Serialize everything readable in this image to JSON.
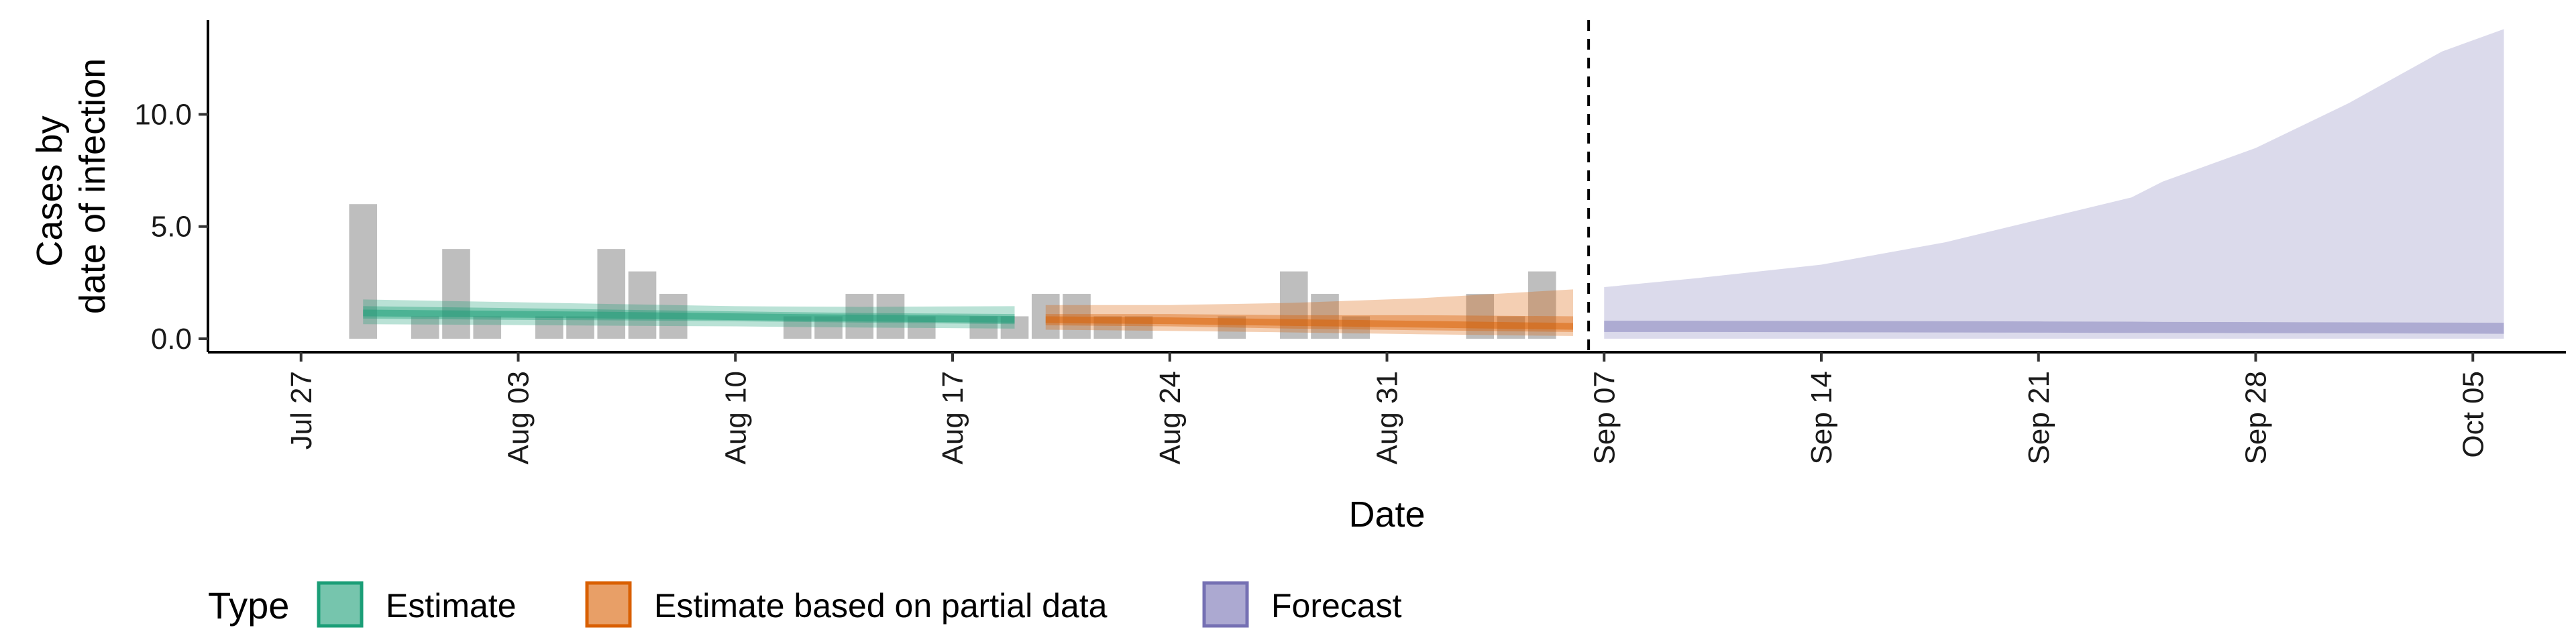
{
  "chart_data": {
    "type": "bar",
    "title": "",
    "xlabel": "Date",
    "ylabel": [
      "Cases by",
      "date of infection"
    ],
    "ylim": [
      -0.6,
      14.2
    ],
    "y_ticks": [
      0,
      5,
      10
    ],
    "y_tick_labels": [
      "0.0",
      "5.0",
      "10.0"
    ],
    "x_range": [
      "2020-07-24",
      "2020-10-08"
    ],
    "x_ticks": [
      "2020-07-27",
      "2020-08-03",
      "2020-08-10",
      "2020-08-17",
      "2020-08-24",
      "2020-08-31",
      "2020-09-07",
      "2020-09-14",
      "2020-09-21",
      "2020-09-28",
      "2020-10-05"
    ],
    "x_tick_labels": [
      "Jul 27",
      "Aug 03",
      "Aug 10",
      "Aug 17",
      "Aug 24",
      "Aug 31",
      "Sep 07",
      "Sep 14",
      "Sep 21",
      "Sep 28",
      "Oct 05"
    ],
    "grid": false,
    "reference_line_date": "2020-09-06",
    "observed_cases": {
      "color": "#bebebe",
      "dates": [
        "2020-07-29",
        "2020-07-30",
        "2020-07-31",
        "2020-08-01",
        "2020-08-02",
        "2020-08-03",
        "2020-08-04",
        "2020-08-05",
        "2020-08-06",
        "2020-08-07",
        "2020-08-08",
        "2020-08-09",
        "2020-08-10",
        "2020-08-11",
        "2020-08-12",
        "2020-08-13",
        "2020-08-14",
        "2020-08-15",
        "2020-08-16",
        "2020-08-17",
        "2020-08-18",
        "2020-08-19",
        "2020-08-20",
        "2020-08-21",
        "2020-08-22",
        "2020-08-23",
        "2020-08-24",
        "2020-08-25",
        "2020-08-26",
        "2020-08-27",
        "2020-08-28",
        "2020-08-29",
        "2020-08-30",
        "2020-08-31",
        "2020-09-01",
        "2020-09-02",
        "2020-09-03",
        "2020-09-04",
        "2020-09-05"
      ],
      "values": [
        6,
        0,
        1,
        4,
        1,
        0,
        1,
        1,
        4,
        3,
        2,
        0,
        0,
        0,
        1,
        1,
        2,
        2,
        1,
        0,
        1,
        1,
        2,
        2,
        1,
        1,
        0,
        0,
        1,
        0,
        3,
        2,
        1,
        0,
        0,
        0,
        2,
        1,
        3
      ]
    },
    "series": [
      {
        "name": "Estimate",
        "color": "#1b9e77",
        "dates": [
          "2020-07-29",
          "2020-08-02",
          "2020-08-06",
          "2020-08-10",
          "2020-08-14",
          "2020-08-19"
        ],
        "median": [
          1.15,
          1.1,
          1.05,
          0.98,
          0.92,
          0.86
        ],
        "inner_lower": [
          0.9,
          0.85,
          0.82,
          0.78,
          0.72,
          0.65
        ],
        "inner_upper": [
          1.45,
          1.38,
          1.3,
          1.22,
          1.15,
          1.1
        ],
        "outer_lower": [
          0.65,
          0.62,
          0.58,
          0.55,
          0.5,
          0.45
        ],
        "outer_upper": [
          1.75,
          1.65,
          1.55,
          1.45,
          1.42,
          1.45
        ]
      },
      {
        "name": "Estimate based on partial data",
        "color": "#d95f02",
        "dates": [
          "2020-08-20",
          "2020-08-24",
          "2020-08-28",
          "2020-09-01",
          "2020-09-06"
        ],
        "median": [
          0.85,
          0.8,
          0.72,
          0.65,
          0.55
        ],
        "inner_lower": [
          0.6,
          0.55,
          0.45,
          0.38,
          0.3
        ],
        "inner_upper": [
          1.1,
          1.1,
          1.05,
          1.05,
          1.0
        ],
        "outer_lower": [
          0.4,
          0.35,
          0.28,
          0.2,
          0.12
        ],
        "outer_upper": [
          1.5,
          1.5,
          1.6,
          1.8,
          2.2
        ]
      },
      {
        "name": "Forecast",
        "color": "#7570b3",
        "dates": [
          "2020-09-07",
          "2020-09-10",
          "2020-09-14",
          "2020-09-18",
          "2020-09-21",
          "2020-09-24",
          "2020-09-25",
          "2020-09-28",
          "2020-10-01",
          "2020-10-04",
          "2020-10-06"
        ],
        "median": [
          0.55,
          0.55,
          0.54,
          0.53,
          0.52,
          0.51,
          0.5,
          0.49,
          0.48,
          0.47,
          0.46
        ],
        "inner_lower": [
          0.3,
          0.3,
          0.29,
          0.28,
          0.27,
          0.26,
          0.26,
          0.25,
          0.24,
          0.23,
          0.22
        ],
        "inner_upper": [
          0.8,
          0.8,
          0.79,
          0.78,
          0.77,
          0.76,
          0.75,
          0.74,
          0.73,
          0.72,
          0.71
        ],
        "outer_lower": [
          0,
          0,
          0,
          0,
          0,
          0,
          0,
          0,
          0,
          0,
          0
        ],
        "outer_upper": [
          2.3,
          2.7,
          3.3,
          4.3,
          5.3,
          6.3,
          7.0,
          8.5,
          10.5,
          12.8,
          13.8
        ]
      }
    ],
    "legend": {
      "title": "Type",
      "placement": "bottom-left",
      "entries": [
        "Estimate",
        "Estimate based on partial data",
        "Forecast"
      ]
    }
  }
}
